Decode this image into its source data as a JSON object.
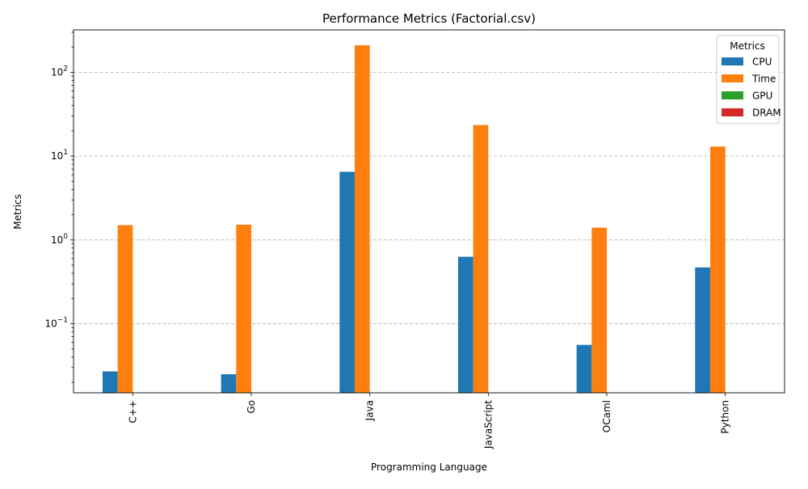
{
  "chart_data": {
    "type": "bar",
    "title": "Performance Metrics (Factorial.csv)",
    "xlabel": "Programming Language",
    "ylabel": "Metrics",
    "yscale": "log",
    "ylim": [
      0.015,
      320
    ],
    "grid": "y-dashed",
    "legend_title": "Metrics",
    "legend_position": "top-right",
    "categories": [
      "C++",
      "Go",
      "Java",
      "JavaScript",
      "OCaml",
      "Python"
    ],
    "series": [
      {
        "name": "CPU",
        "color": "#1f77b4",
        "values": [
          0.027,
          0.025,
          6.5,
          0.63,
          0.056,
          0.47
        ]
      },
      {
        "name": "Time",
        "color": "#ff7f0e",
        "values": [
          1.5,
          1.52,
          210,
          23.5,
          1.4,
          13
        ]
      },
      {
        "name": "GPU",
        "color": "#2ca02c",
        "values": [
          0,
          0,
          0,
          0,
          0,
          0
        ]
      },
      {
        "name": "DRAM",
        "color": "#d62728",
        "values": [
          0,
          0,
          0,
          0,
          0,
          0
        ]
      }
    ],
    "y_ticks": [
      {
        "value": 0.1,
        "base": "10",
        "exp": "−1"
      },
      {
        "value": 1,
        "base": "10",
        "exp": "0"
      },
      {
        "value": 10,
        "base": "10",
        "exp": "1"
      },
      {
        "value": 100,
        "base": "10",
        "exp": "2"
      }
    ]
  }
}
